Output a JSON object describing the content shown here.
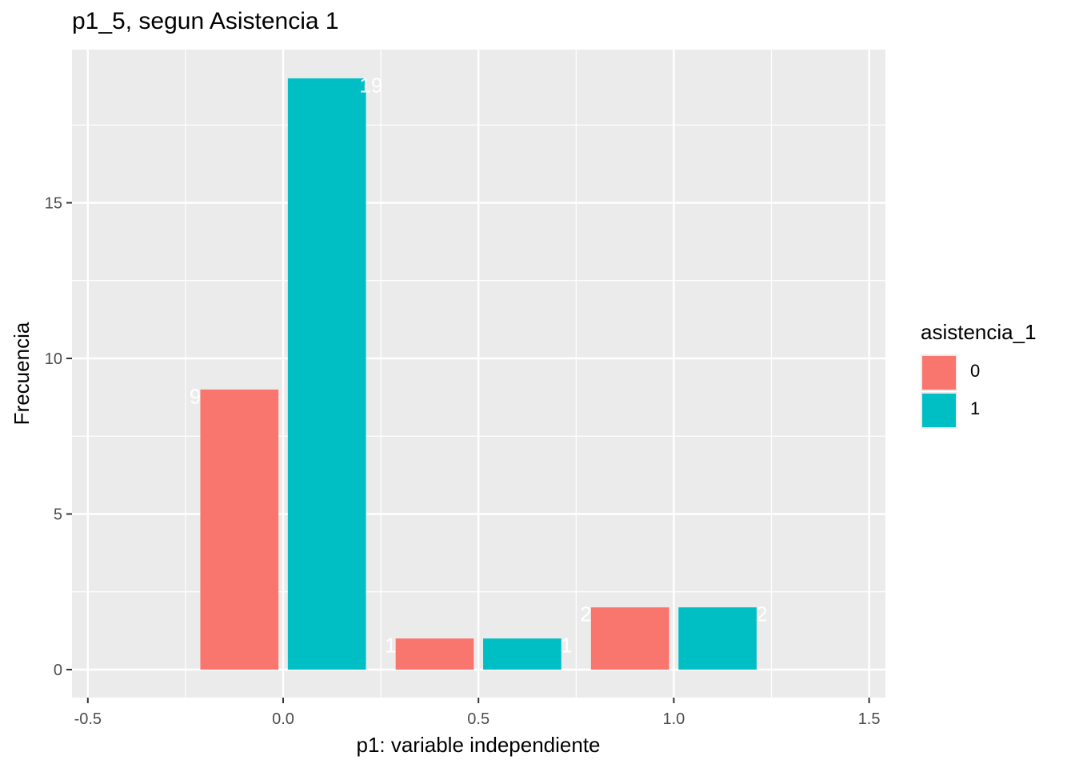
{
  "chart_data": {
    "type": "bar",
    "title": "p1_5, segun Asistencia 1",
    "xlabel": "p1: variable independiente",
    "ylabel": "Frecuencia",
    "x_ticks": [
      "-0.5",
      "0.0",
      "0.5",
      "1.0",
      "1.5"
    ],
    "y_ticks": [
      "0",
      "5",
      "10",
      "15"
    ],
    "xlim": [
      -0.5,
      1.5
    ],
    "ylim": [
      0,
      19
    ],
    "grid": true,
    "legend": {
      "title": "asistencia_1",
      "position": "right"
    },
    "categories": [
      0,
      0.5,
      1
    ],
    "series": [
      {
        "name": "0",
        "color": "#F8766D",
        "values": [
          9,
          1,
          2
        ]
      },
      {
        "name": "1",
        "color": "#00BFC4",
        "values": [
          19,
          1,
          2
        ]
      }
    ],
    "data_labels": [
      {
        "series": "0",
        "x": 0,
        "text": "9"
      },
      {
        "series": "1",
        "x": 0,
        "text": "19"
      },
      {
        "series": "0",
        "x": 0.5,
        "text": "1"
      },
      {
        "series": "1",
        "x": 0.5,
        "text": "1"
      },
      {
        "series": "0",
        "x": 1,
        "text": "2"
      },
      {
        "series": "1",
        "x": 1,
        "text": "2"
      }
    ],
    "panel_background": "#EBEBEB",
    "grid_color": "#FFFFFF"
  }
}
